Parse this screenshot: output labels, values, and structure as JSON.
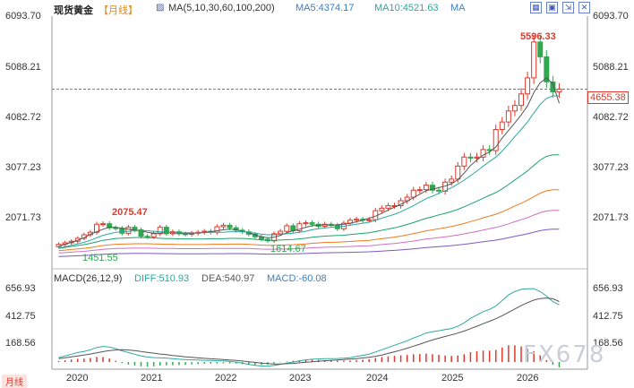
{
  "header": {
    "symbol": "现货黄金",
    "period": "【月线】",
    "ma_label": "MA(5,10,30,60,100,200)",
    "ma5": "MA5:4374.17",
    "ma10": "MA10:4521.63",
    "ma_more": "MA"
  },
  "macd_header": {
    "label": "MACD(26,12,9)",
    "diff": "DIFF:510.93",
    "dea": "DEA:540.97",
    "macd": "MACD:-60.08"
  },
  "price_ticks": [
    "6093.70",
    "5088.21",
    "4082.72",
    "3077.23",
    "2071.73"
  ],
  "macd_ticks": [
    "656.93",
    "412.75",
    "168.56"
  ],
  "x_ticks": [
    "2020",
    "2021",
    "2022",
    "2023",
    "2024",
    "2025",
    "2026"
  ],
  "annotations": {
    "high": "5596.33",
    "mid_high": "2075.47",
    "low1": "1451.55",
    "low2": "1614.67",
    "last": "4655.38"
  },
  "watermark": "FX678",
  "left_marker": "月线",
  "colors": {
    "up": "#e0392b",
    "down": "#2fa84f",
    "ma5": "#555555",
    "ma10": "#2aa8a0",
    "ma30": "#1aa46a",
    "ma60": "#f07b1d",
    "ma100": "#d070c8",
    "ma200": "#7a5bc4",
    "diff": "#2aa8a0",
    "dea": "#555555"
  },
  "chart_data": [
    {
      "type": "candlestick",
      "title": "现货黄金【月线】",
      "y_ticks": [
        6093.7,
        5088.21,
        4082.72,
        3077.23,
        2071.73
      ],
      "x_ticks": [
        "2020",
        "2021",
        "2022",
        "2023",
        "2024",
        "2025",
        "2026"
      ],
      "close_series": [
        1560,
        1590,
        1620,
        1680,
        1750,
        1800,
        1960,
        1970,
        1890,
        1880,
        1780,
        1900,
        1850,
        1720,
        1710,
        1770,
        1900,
        1770,
        1810,
        1770,
        1760,
        1780,
        1800,
        1820,
        1800,
        1910,
        1940,
        1890,
        1840,
        1810,
        1760,
        1710,
        1660,
        1630,
        1770,
        1820,
        1930,
        1830,
        1970,
        1990,
        1960,
        1920,
        1960,
        1940,
        1870,
        1980,
        2040,
        2060,
        2040,
        2050,
        2230,
        2280,
        2330,
        2330,
        2430,
        2500,
        2640,
        2650,
        2740,
        2640,
        2620,
        2800,
        2860,
        3120,
        3300,
        3280,
        3300,
        3450,
        3430,
        3850,
        4000,
        4220,
        4330,
        4560,
        4880,
        5596,
        5300,
        4800,
        4600,
        4655
      ],
      "ma5": [
        1520,
        1560,
        1600,
        1640,
        1690,
        1760,
        1810,
        1860,
        1900,
        1900,
        1880,
        1860,
        1840,
        1830,
        1800,
        1780,
        1780,
        1800,
        1790,
        1780,
        1770,
        1780,
        1790,
        1800,
        1810,
        1830,
        1850,
        1860,
        1850,
        1820,
        1790,
        1750,
        1710,
        1690,
        1700,
        1740,
        1790,
        1830,
        1860,
        1900,
        1930,
        1940,
        1950,
        1940,
        1950,
        1960,
        1980,
        2010,
        2040,
        2080,
        2120,
        2180,
        2240,
        2300,
        2360,
        2420,
        2490,
        2560,
        2630,
        2660,
        2690,
        2720,
        2770,
        2850,
        2980,
        3130,
        3240,
        3340,
        3400,
        3500,
        3680,
        3830,
        3980,
        4140,
        4320,
        4590,
        4780,
        4880,
        4760,
        4374
      ],
      "ma10": [
        1480,
        1510,
        1540,
        1570,
        1600,
        1640,
        1690,
        1740,
        1770,
        1800,
        1810,
        1820,
        1830,
        1830,
        1830,
        1820,
        1810,
        1800,
        1800,
        1790,
        1790,
        1790,
        1790,
        1790,
        1800,
        1800,
        1800,
        1810,
        1810,
        1810,
        1800,
        1780,
        1760,
        1750,
        1750,
        1760,
        1770,
        1780,
        1800,
        1820,
        1850,
        1870,
        1890,
        1900,
        1910,
        1920,
        1940,
        1960,
        1980,
        2000,
        2040,
        2080,
        2120,
        2160,
        2210,
        2270,
        2330,
        2400,
        2470,
        2520,
        2580,
        2630,
        2690,
        2760,
        2840,
        2930,
        3020,
        3120,
        3210,
        3300,
        3420,
        3560,
        3710,
        3850,
        4000,
        4180,
        4350,
        4470,
        4520,
        4521
      ]
    },
    {
      "type": "line",
      "title": "MACD(26,12,9)",
      "y_ticks": [
        656.93,
        412.75,
        168.56
      ],
      "series": [
        {
          "name": "DIFF",
          "values": [
            40,
            55,
            70,
            85,
            95,
            110,
            130,
            140,
            135,
            120,
            100,
            85,
            70,
            55,
            45,
            40,
            38,
            36,
            30,
            25,
            22,
            20,
            18,
            16,
            14,
            12,
            10,
            5,
            0,
            -10,
            -20,
            -30,
            -35,
            -38,
            -30,
            -20,
            -10,
            0,
            10,
            20,
            25,
            28,
            30,
            30,
            32,
            35,
            40,
            50,
            60,
            70,
            90,
            110,
            130,
            150,
            170,
            190,
            215,
            235,
            260,
            270,
            280,
            290,
            300,
            320,
            350,
            390,
            420,
            450,
            470,
            500,
            550,
            600,
            630,
            650,
            655,
            656,
            630,
            590,
            540,
            510.93
          ]
        },
        {
          "name": "DEA",
          "values": [
            30,
            38,
            46,
            55,
            63,
            72,
            82,
            93,
            102,
            108,
            110,
            108,
            102,
            95,
            87,
            80,
            72,
            66,
            59,
            53,
            47,
            42,
            37,
            33,
            29,
            26,
            22,
            18,
            14,
            9,
            3,
            -3,
            -9,
            -14,
            -17,
            -17,
            -15,
            -12,
            -7,
            -2,
            3,
            8,
            12,
            16,
            19,
            22,
            26,
            31,
            37,
            43,
            52,
            63,
            77,
            92,
            107,
            124,
            142,
            160,
            180,
            197,
            213,
            229,
            243,
            259,
            277,
            298,
            320,
            343,
            364,
            387,
            414,
            444,
            474,
            504,
            531,
            554,
            567,
            572,
            566,
            540.97
          ]
        },
        {
          "name": "MACD",
          "values": [
            10,
            17,
            24,
            30,
            32,
            38,
            48,
            47,
            33,
            12,
            -10,
            -23,
            -32,
            -40,
            -42,
            -40,
            -34,
            -30,
            -29,
            -28,
            -25,
            -22,
            -19,
            -17,
            -15,
            -14,
            -12,
            -13,
            -14,
            -19,
            -23,
            -27,
            -26,
            -24,
            -13,
            -3,
            5,
            12,
            17,
            22,
            22,
            20,
            18,
            14,
            13,
            13,
            14,
            19,
            23,
            27,
            38,
            47,
            53,
            58,
            63,
            66,
            73,
            75,
            80,
            73,
            67,
            61,
            57,
            61,
            73,
            92,
            100,
            107,
            106,
            113,
            136,
            156,
            156,
            146,
            124,
            102,
            63,
            18,
            -26,
            -60.08
          ]
        }
      ]
    }
  ]
}
